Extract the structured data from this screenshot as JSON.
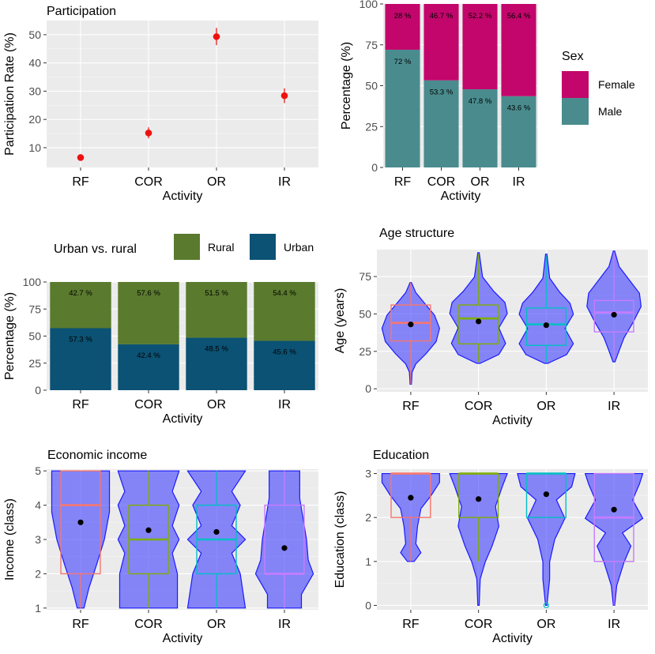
{
  "chart_data": [
    {
      "id": "participation",
      "type": "scatter",
      "title": "Participation",
      "xlabel": "Activity",
      "ylabel": "Participation Rate (%)",
      "categories": [
        "RF",
        "COR",
        "OR",
        "IR"
      ],
      "values": [
        6.5,
        15.2,
        49.3,
        28.4
      ],
      "error_low": [
        5.5,
        13.3,
        46.3,
        25.8
      ],
      "error_high": [
        7.6,
        17.2,
        52.4,
        31.0
      ],
      "ylim": [
        3,
        55
      ],
      "yticks": [
        10,
        20,
        30,
        40,
        50
      ],
      "color": "#ee1111"
    },
    {
      "id": "sex",
      "type": "bar",
      "stacked": true,
      "title": "",
      "xlabel": "Activity",
      "ylabel": "Percentage (%)",
      "categories": [
        "RF",
        "COR",
        "OR",
        "IR"
      ],
      "ylim": [
        0,
        100
      ],
      "yticks": [
        0,
        25,
        50,
        75,
        100
      ],
      "series": [
        {
          "name": "Male",
          "color": "#4a8c8e",
          "values": [
            72,
            53.3,
            47.8,
            43.6
          ],
          "labels": [
            "72 %",
            "53.3 %",
            "47.8 %",
            "43.6 %"
          ]
        },
        {
          "name": "Female",
          "color": "#c3066b",
          "values": [
            28,
            46.7,
            52.2,
            56.4
          ],
          "labels": [
            "28 %",
            "46.7 %",
            "52.2 %",
            "56.4 %"
          ]
        }
      ],
      "legend": {
        "title": "Sex",
        "position": "right",
        "items": [
          "Female",
          "Male"
        ]
      }
    },
    {
      "id": "urban",
      "type": "bar",
      "stacked": true,
      "title": "",
      "xlabel": "Activity",
      "ylabel": "Percentage (%)",
      "categories": [
        "RF",
        "COR",
        "OR",
        "IR"
      ],
      "ylim": [
        0,
        100
      ],
      "yticks": [
        0,
        25,
        50,
        75,
        100
      ],
      "series": [
        {
          "name": "Urban",
          "color": "#0b5274",
          "values": [
            57.3,
            42.4,
            48.5,
            45.6
          ],
          "labels": [
            "57.3 %",
            "42.4 %",
            "48.5 %",
            "45.6 %"
          ]
        },
        {
          "name": "Rural",
          "color": "#5a7a2e",
          "values": [
            42.7,
            57.6,
            51.5,
            54.4
          ],
          "labels": [
            "42.7 %",
            "57.6 %",
            "51.5 %",
            "54.4 %"
          ]
        }
      ],
      "legend": {
        "title": "Urban vs. rural",
        "position": "top",
        "items": [
          "Rural",
          "Urban"
        ]
      }
    },
    {
      "id": "age",
      "type": "violin",
      "title": "Age structure",
      "xlabel": "Activity",
      "ylabel": "Age (years)",
      "categories": [
        "RF",
        "COR",
        "OR",
        "IR"
      ],
      "ylim": [
        -2,
        93
      ],
      "yticks": [
        0,
        25,
        50,
        75
      ],
      "mean": [
        43,
        45,
        42.5,
        49.5
      ],
      "box_q1": [
        32,
        30,
        29,
        38
      ],
      "box_median": [
        44,
        47,
        43,
        51
      ],
      "box_q3": [
        56,
        56,
        54,
        59
      ],
      "whisker_low": [
        3,
        18,
        18,
        20
      ],
      "whisker_high": [
        71,
        90,
        89,
        91
      ],
      "violin_min": [
        3,
        17,
        17,
        18
      ],
      "violin_max": [
        71,
        91,
        90,
        92
      ],
      "box_colors": [
        "#f8766d",
        "#7cae00",
        "#00bfc4",
        "#c77cff"
      ]
    },
    {
      "id": "income",
      "type": "violin",
      "title": "Economic income",
      "xlabel": "Activity",
      "ylabel": "Income (class)",
      "categories": [
        "RF",
        "COR",
        "OR",
        "IR"
      ],
      "ylim": [
        0.95,
        5.05
      ],
      "yticks": [
        1,
        2,
        3,
        4,
        5
      ],
      "mean": [
        3.5,
        3.27,
        3.22,
        2.75
      ],
      "box_q1": [
        2,
        2,
        2,
        2
      ],
      "box_median": [
        4,
        3,
        3,
        2
      ],
      "box_q3": [
        5,
        4,
        4,
        4
      ],
      "whisker_low": [
        1,
        1,
        1,
        1
      ],
      "whisker_high": [
        5,
        5,
        5,
        5
      ],
      "violin_min": [
        1,
        1,
        1,
        1
      ],
      "violin_max": [
        5,
        5,
        5,
        5
      ],
      "box_colors": [
        "#f8766d",
        "#7cae00",
        "#00bfc4",
        "#c77cff"
      ]
    },
    {
      "id": "education",
      "type": "violin",
      "title": "Education",
      "xlabel": "Activity",
      "ylabel": "Education (class)",
      "categories": [
        "RF",
        "COR",
        "OR",
        "IR"
      ],
      "ylim": [
        -0.1,
        3.1
      ],
      "yticks": [
        0,
        1,
        2,
        3
      ],
      "mean": [
        2.45,
        2.42,
        2.53,
        2.18
      ],
      "box_q1": [
        2,
        2,
        2,
        1
      ],
      "box_median": [
        3,
        3,
        3,
        2
      ],
      "box_q3": [
        3,
        3,
        3,
        3
      ],
      "whisker_low": [
        1,
        1,
        2,
        0
      ],
      "whisker_high": [
        3,
        3,
        3,
        3
      ],
      "violin_min": [
        1,
        0,
        0,
        0
      ],
      "violin_max": [
        3,
        3,
        3,
        3
      ],
      "outliers": [
        [],
        [],
        [
          0
        ],
        []
      ],
      "box_colors": [
        "#f8766d",
        "#7cae00",
        "#00bfc4",
        "#c77cff"
      ]
    }
  ]
}
